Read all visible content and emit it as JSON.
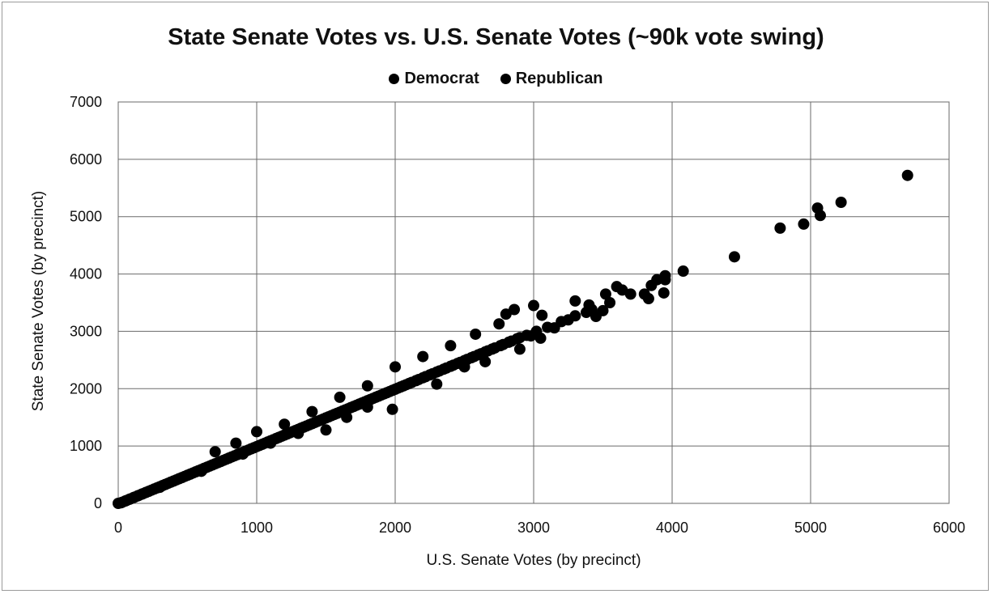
{
  "chart_data": {
    "type": "scatter",
    "title": "State Senate Votes vs. U.S. Senate Votes (~90k vote swing)",
    "xlabel": "U.S. Senate Votes (by precinct)",
    "ylabel": "State Senate Votes (by precinct)",
    "xlim": [
      0,
      6000
    ],
    "ylim": [
      0,
      7000
    ],
    "xticks": [
      "0",
      "1000",
      "2000",
      "3000",
      "4000",
      "5000",
      "6000"
    ],
    "yticks": [
      "0",
      "1000",
      "2000",
      "3000",
      "4000",
      "5000",
      "6000",
      "7000"
    ],
    "grid": true,
    "legend_position": "top",
    "marker_color": "#000000",
    "series": [
      {
        "name": "Democrat",
        "points": [
          [
            0,
            0
          ],
          [
            30,
            20
          ],
          [
            60,
            50
          ],
          [
            90,
            80
          ],
          [
            120,
            110
          ],
          [
            150,
            140
          ],
          [
            180,
            170
          ],
          [
            220,
            210
          ],
          [
            260,
            250
          ],
          [
            300,
            290
          ],
          [
            340,
            330
          ],
          [
            380,
            370
          ],
          [
            420,
            410
          ],
          [
            460,
            450
          ],
          [
            500,
            490
          ],
          [
            540,
            530
          ],
          [
            580,
            570
          ],
          [
            620,
            610
          ],
          [
            660,
            650
          ],
          [
            700,
            690
          ],
          [
            740,
            730
          ],
          [
            780,
            770
          ],
          [
            820,
            810
          ],
          [
            860,
            850
          ],
          [
            900,
            890
          ],
          [
            940,
            930
          ],
          [
            980,
            970
          ],
          [
            1020,
            1010
          ],
          [
            1060,
            1050
          ],
          [
            1100,
            1090
          ],
          [
            1140,
            1130
          ],
          [
            1180,
            1170
          ],
          [
            1220,
            1210
          ],
          [
            1260,
            1250
          ],
          [
            1300,
            1290
          ],
          [
            1340,
            1330
          ],
          [
            1380,
            1370
          ],
          [
            1420,
            1410
          ],
          [
            1460,
            1450
          ],
          [
            1500,
            1490
          ],
          [
            1540,
            1530
          ],
          [
            1580,
            1570
          ],
          [
            1620,
            1610
          ],
          [
            1660,
            1650
          ],
          [
            1700,
            1690
          ],
          [
            1740,
            1730
          ],
          [
            1780,
            1770
          ],
          [
            1820,
            1810
          ],
          [
            1860,
            1850
          ],
          [
            1900,
            1890
          ],
          [
            1940,
            1930
          ],
          [
            1980,
            1970
          ],
          [
            2020,
            2010
          ],
          [
            2060,
            2050
          ],
          [
            2100,
            2090
          ],
          [
            2150,
            2140
          ],
          [
            2200,
            2190
          ],
          [
            2250,
            2240
          ],
          [
            2300,
            2290
          ],
          [
            2350,
            2340
          ],
          [
            2400,
            2390
          ],
          [
            2450,
            2440
          ],
          [
            2500,
            2490
          ],
          [
            2550,
            2540
          ],
          [
            2600,
            2590
          ],
          [
            2650,
            2640
          ],
          [
            2700,
            2690
          ],
          [
            2760,
            2750
          ],
          [
            2820,
            2810
          ],
          [
            2880,
            2870
          ],
          [
            2950,
            2930
          ],
          [
            3020,
            3000
          ],
          [
            3100,
            3070
          ],
          [
            3200,
            3170
          ],
          [
            3300,
            3270
          ],
          [
            3420,
            3380
          ],
          [
            3550,
            3500
          ],
          [
            3700,
            3650
          ],
          [
            3850,
            3800
          ],
          [
            3950,
            3900
          ],
          [
            4080,
            4050
          ],
          [
            4450,
            4300
          ],
          [
            4780,
            4800
          ],
          [
            4950,
            4870
          ],
          [
            5050,
            5150
          ],
          [
            5070,
            5020
          ],
          [
            5220,
            5250
          ],
          [
            5700,
            5720
          ],
          [
            700,
            900
          ],
          [
            850,
            1050
          ],
          [
            1000,
            1250
          ],
          [
            1200,
            1380
          ],
          [
            1400,
            1600
          ],
          [
            1600,
            1850
          ],
          [
            1800,
            2050
          ],
          [
            2000,
            2380
          ],
          [
            2200,
            2560
          ],
          [
            2400,
            2750
          ],
          [
            2580,
            2950
          ],
          [
            2750,
            3130
          ],
          [
            2800,
            3300
          ],
          [
            2860,
            3380
          ],
          [
            3000,
            3450
          ],
          [
            3060,
            3280
          ],
          [
            3400,
            3460
          ],
          [
            3520,
            3650
          ],
          [
            3600,
            3780
          ],
          [
            3640,
            3720
          ],
          [
            3890,
            3900
          ],
          [
            3950,
            3970
          ],
          [
            3300,
            3530
          ]
        ]
      },
      {
        "name": "Republican",
        "points": [
          [
            20,
            10
          ],
          [
            50,
            40
          ],
          [
            80,
            70
          ],
          [
            110,
            100
          ],
          [
            140,
            130
          ],
          [
            170,
            160
          ],
          [
            200,
            190
          ],
          [
            240,
            230
          ],
          [
            280,
            270
          ],
          [
            320,
            310
          ],
          [
            360,
            350
          ],
          [
            400,
            390
          ],
          [
            440,
            430
          ],
          [
            480,
            470
          ],
          [
            520,
            510
          ],
          [
            560,
            550
          ],
          [
            600,
            590
          ],
          [
            640,
            630
          ],
          [
            680,
            670
          ],
          [
            720,
            710
          ],
          [
            760,
            750
          ],
          [
            800,
            790
          ],
          [
            840,
            830
          ],
          [
            880,
            870
          ],
          [
            920,
            910
          ],
          [
            960,
            950
          ],
          [
            1000,
            990
          ],
          [
            1040,
            1030
          ],
          [
            1080,
            1070
          ],
          [
            1120,
            1110
          ],
          [
            1160,
            1150
          ],
          [
            1200,
            1190
          ],
          [
            1240,
            1230
          ],
          [
            1280,
            1270
          ],
          [
            1320,
            1310
          ],
          [
            1360,
            1350
          ],
          [
            1400,
            1390
          ],
          [
            1440,
            1430
          ],
          [
            1480,
            1470
          ],
          [
            1520,
            1510
          ],
          [
            1560,
            1550
          ],
          [
            1600,
            1590
          ],
          [
            1640,
            1630
          ],
          [
            1680,
            1670
          ],
          [
            1720,
            1710
          ],
          [
            1760,
            1750
          ],
          [
            1800,
            1790
          ],
          [
            1840,
            1830
          ],
          [
            1880,
            1870
          ],
          [
            1920,
            1910
          ],
          [
            1960,
            1950
          ],
          [
            2000,
            1990
          ],
          [
            2040,
            2030
          ],
          [
            2080,
            2070
          ],
          [
            2120,
            2110
          ],
          [
            2170,
            2160
          ],
          [
            2220,
            2210
          ],
          [
            2270,
            2260
          ],
          [
            2320,
            2310
          ],
          [
            2370,
            2360
          ],
          [
            2420,
            2410
          ],
          [
            2470,
            2460
          ],
          [
            2520,
            2510
          ],
          [
            2570,
            2560
          ],
          [
            2620,
            2610
          ],
          [
            2670,
            2660
          ],
          [
            2720,
            2710
          ],
          [
            2780,
            2770
          ],
          [
            2840,
            2830
          ],
          [
            2900,
            2890
          ],
          [
            2980,
            2920
          ],
          [
            3050,
            2880
          ],
          [
            3150,
            3060
          ],
          [
            3250,
            3200
          ],
          [
            3380,
            3330
          ],
          [
            3450,
            3260
          ],
          [
            3500,
            3360
          ],
          [
            3800,
            3650
          ],
          [
            3830,
            3570
          ],
          [
            3940,
            3670
          ],
          [
            1500,
            1280
          ],
          [
            1800,
            1680
          ],
          [
            1980,
            1640
          ],
          [
            2300,
            2080
          ],
          [
            2500,
            2380
          ],
          [
            1300,
            1220
          ],
          [
            1100,
            1050
          ],
          [
            900,
            860
          ],
          [
            600,
            560
          ],
          [
            300,
            280
          ],
          [
            2650,
            2470
          ],
          [
            2900,
            2690
          ],
          [
            1650,
            1500
          ]
        ]
      }
    ]
  }
}
